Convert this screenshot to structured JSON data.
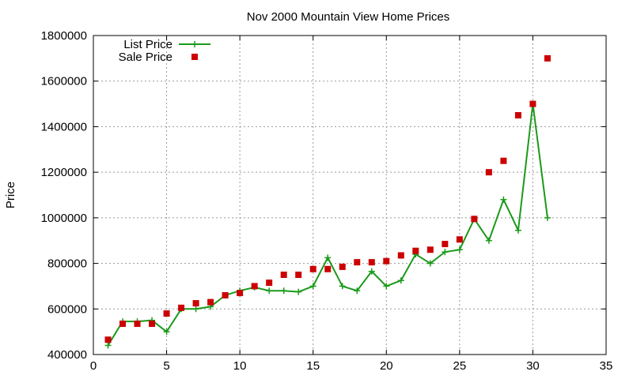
{
  "chart_data": {
    "type": "line",
    "title": "Nov 2000 Mountain View Home Prices",
    "xlabel": "",
    "ylabel": "Price",
    "xlim": [
      0,
      35
    ],
    "ylim": [
      400000,
      1800000
    ],
    "x_ticks": [
      0,
      5,
      10,
      15,
      20,
      25,
      30,
      35
    ],
    "y_ticks": [
      400000,
      600000,
      800000,
      1000000,
      1200000,
      1400000,
      1600000,
      1800000
    ],
    "grid": true,
    "legend_position": "top-left",
    "series": [
      {
        "name": "List Price",
        "style": "line+cross",
        "color": "#1a9a1a",
        "x": [
          1,
          2,
          3,
          4,
          5,
          6,
          7,
          8,
          9,
          10,
          11,
          12,
          13,
          14,
          15,
          16,
          17,
          18,
          19,
          20,
          21,
          22,
          23,
          24,
          25,
          26,
          27,
          28,
          29,
          30,
          31
        ],
        "values": [
          440000,
          545000,
          545000,
          550000,
          500000,
          600000,
          600000,
          610000,
          660000,
          680000,
          695000,
          680000,
          680000,
          675000,
          700000,
          825000,
          700000,
          680000,
          765000,
          700000,
          725000,
          840000,
          800000,
          850000,
          860000,
          995000,
          900000,
          1080000,
          945000,
          1500000,
          1000000
        ]
      },
      {
        "name": "Sale Price",
        "style": "square",
        "color": "#cc0000",
        "x": [
          1,
          2,
          3,
          4,
          5,
          6,
          7,
          8,
          9,
          10,
          11,
          12,
          13,
          14,
          15,
          16,
          17,
          18,
          19,
          20,
          21,
          22,
          23,
          24,
          25,
          26,
          27,
          28,
          29,
          30,
          31
        ],
        "values": [
          465000,
          535000,
          535000,
          535000,
          580000,
          605000,
          625000,
          630000,
          660000,
          670000,
          700000,
          715000,
          750000,
          750000,
          775000,
          775000,
          785000,
          805000,
          805000,
          810000,
          835000,
          855000,
          860000,
          885000,
          905000,
          995000,
          1200000,
          1250000,
          1450000,
          1500000,
          1700000
        ]
      }
    ]
  }
}
